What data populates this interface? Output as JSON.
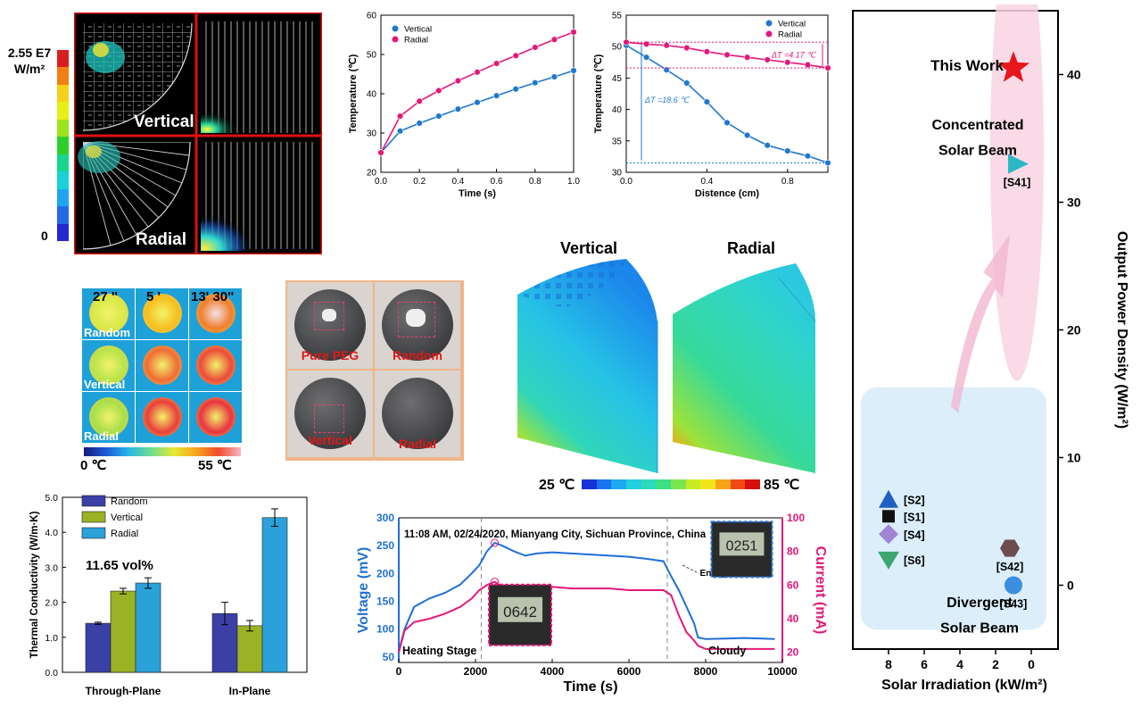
{
  "panel_a": {
    "scale_max": "2.55 E7",
    "scale_unit": "W/m²",
    "scale_min": "0",
    "label_vertical": "Vertical",
    "label_radial": "Radial",
    "scale_colors": [
      "#d81f1f",
      "#f27f12",
      "#f6d11a",
      "#e8ef16",
      "#9be41d",
      "#2fcf29",
      "#17d58d",
      "#18d2d8",
      "#1ea5ef",
      "#246ae7",
      "#2426d1"
    ]
  },
  "panel_c": {
    "times": [
      "27 ''",
      "5 '",
      "13' 30''"
    ],
    "rows": [
      "Random",
      "Vertical",
      "Radial"
    ],
    "scale_min": "0 ℃",
    "scale_max": "55 ℃"
  },
  "panel_d": {
    "labels": [
      "Pure PEG",
      "Random",
      "Vertical",
      "Radial"
    ]
  },
  "panel_e": {
    "title_vertical": "Vertical",
    "title_radial": "Radial",
    "scale_min": "25 ℃",
    "scale_max": "85 ℃",
    "scale_colors": [
      "#1633d8",
      "#1a74ee",
      "#1ea9f0",
      "#25cfe0",
      "#2ed9bb",
      "#3ddf86",
      "#7ae650",
      "#c6ec27",
      "#f3e51b",
      "#f6a516",
      "#ef4b14",
      "#d61010"
    ]
  },
  "panel_h": {
    "timestamp": "11:08 AM, 02/24/2020, Mianyang City, Sichuan Province, China",
    "annotations": {
      "heating": "Heating Stage",
      "cloudy": "Cloudy",
      "release": "Energy Release"
    },
    "meter_left": "0642",
    "meter_right": "0251"
  },
  "panel_i": {
    "label_this_work": "This Work",
    "label_concentrated_1": "Concentrated",
    "label_concentrated_2": "Solar Beam",
    "label_divergent_1": "Divergent",
    "label_divergent_2": "Solar Beam"
  },
  "chart_data": [
    {
      "id": "temp_vs_time",
      "type": "line",
      "title": "",
      "xlabel": "Time (s)",
      "ylabel": "Temperature (℃)",
      "xlim": [
        0,
        1.0
      ],
      "ylim": [
        20,
        60
      ],
      "xticks": [
        0.0,
        0.2,
        0.4,
        0.6,
        0.8,
        1.0
      ],
      "xtick_labels": [
        "0.0",
        "0.2",
        "0.4",
        "0.6",
        "0.8",
        "1.0"
      ],
      "yticks": [
        20,
        30,
        40,
        50,
        60
      ],
      "legend": "top-left",
      "series": [
        {
          "name": "Vertical",
          "color": "#1f78d1",
          "x": [
            0.0,
            0.1,
            0.2,
            0.3,
            0.4,
            0.5,
            0.6,
            0.7,
            0.8,
            0.9,
            1.0
          ],
          "y": [
            25,
            30.5,
            32.5,
            34.3,
            36.1,
            37.8,
            39.5,
            41.2,
            42.8,
            44.3,
            45.9
          ]
        },
        {
          "name": "Radial",
          "color": "#e5177a",
          "x": [
            0.0,
            0.1,
            0.2,
            0.3,
            0.4,
            0.5,
            0.6,
            0.7,
            0.8,
            0.9,
            1.0
          ],
          "y": [
            25,
            34.3,
            38.1,
            40.8,
            43.3,
            45.5,
            47.7,
            49.7,
            51.8,
            53.8,
            55.7
          ]
        }
      ]
    },
    {
      "id": "temp_vs_distance",
      "type": "line",
      "title": "",
      "xlabel": "Distence (cm)",
      "ylabel": "Temperature (℃)",
      "xlim": [
        0,
        1.0
      ],
      "ylim": [
        30,
        55
      ],
      "xticks": [
        0.0,
        0.4,
        0.8
      ],
      "xtick_labels": [
        "0.0",
        "0.4",
        "0.8"
      ],
      "yticks": [
        30,
        35,
        40,
        45,
        50,
        55
      ],
      "legend": "top-right",
      "annotations": [
        "ΔT =4.17 ℃",
        "ΔT =18.6 ℃"
      ],
      "series": [
        {
          "name": "Vertical",
          "color": "#1f78d1",
          "x": [
            0.0,
            0.1,
            0.2,
            0.3,
            0.4,
            0.5,
            0.6,
            0.7,
            0.8,
            0.9,
            1.0
          ],
          "y": [
            50.2,
            48.3,
            46.3,
            44.2,
            41.2,
            37.9,
            35.9,
            34.3,
            33.4,
            32.6,
            31.5
          ]
        },
        {
          "name": "Radial",
          "color": "#e5177a",
          "x": [
            0.0,
            0.1,
            0.2,
            0.3,
            0.4,
            0.5,
            0.6,
            0.7,
            0.8,
            0.9,
            1.0
          ],
          "y": [
            50.7,
            50.4,
            50.2,
            49.8,
            49.2,
            48.7,
            48.3,
            47.9,
            47.5,
            47.1,
            46.6
          ]
        }
      ]
    },
    {
      "id": "thermal_conductivity",
      "type": "bar",
      "title": "11.65 vol%",
      "xlabel": "",
      "ylabel": "Thermal Conductivity (W/m·K)",
      "ylim": [
        0,
        5.0
      ],
      "yticks": [
        0.0,
        1.0,
        2.0,
        3.0,
        4.0,
        5.0
      ],
      "ytick_labels": [
        "0.0",
        "1.0",
        "2.0",
        "3.0",
        "4.0",
        "5.0"
      ],
      "categories": [
        "Through-Plane",
        "In-Plane"
      ],
      "legend": "top-left",
      "series": [
        {
          "name": "Random",
          "color": "#3b40a6",
          "values": [
            1.4,
            1.68
          ],
          "errors": [
            0.03,
            0.32
          ]
        },
        {
          "name": "Vertical",
          "color": "#9bb224",
          "values": [
            2.32,
            1.33
          ],
          "errors": [
            0.08,
            0.15
          ]
        },
        {
          "name": "Radial",
          "color": "#2aa1d8",
          "values": [
            2.55,
            4.42
          ],
          "errors": [
            0.15,
            0.25
          ]
        }
      ]
    },
    {
      "id": "voltage_current",
      "type": "line",
      "title": "",
      "xlabel": "Time (s)",
      "ylabel": "Voltage (mV)",
      "ylabel_right": "Current (mA)",
      "xlim": [
        0,
        10000
      ],
      "ylim": [
        40,
        300
      ],
      "ylim_right": [
        14,
        100
      ],
      "xticks": [
        0,
        2000,
        4000,
        6000,
        8000,
        10000
      ],
      "yticks": [
        50,
        100,
        150,
        200,
        250,
        300
      ],
      "yticks_right": [
        20,
        40,
        60,
        80,
        100
      ],
      "markers": [
        2150,
        7000
      ],
      "series": [
        {
          "name": "Voltage",
          "color": "#1f6fd6",
          "axis": "left",
          "x": [
            0,
            150,
            400,
            800,
            1200,
            1600,
            1900,
            2100,
            2300,
            2500,
            2700,
            3000,
            3300,
            3600,
            4000,
            4500,
            5000,
            5500,
            6000,
            6500,
            6900,
            7100,
            7300,
            7500,
            7700,
            7800,
            8000,
            8500,
            9000,
            9500,
            9800
          ],
          "y": [
            60,
            100,
            140,
            155,
            165,
            180,
            200,
            215,
            240,
            255,
            250,
            240,
            232,
            236,
            238,
            236,
            234,
            232,
            230,
            226,
            222,
            195,
            170,
            140,
            110,
            85,
            82,
            83,
            84,
            83,
            82
          ]
        },
        {
          "name": "Current",
          "color": "#e5177a",
          "axis": "right",
          "x": [
            0,
            150,
            400,
            800,
            1200,
            1600,
            1900,
            2100,
            2300,
            2500,
            2700,
            3000,
            3300,
            3600,
            4000,
            4500,
            5000,
            5500,
            6000,
            6500,
            6900,
            7100,
            7300,
            7500,
            7700,
            7800,
            8000,
            8500,
            9000,
            9500,
            9800
          ],
          "y": [
            20,
            33,
            38,
            40,
            43,
            47,
            52,
            57,
            60,
            62,
            59,
            57,
            58,
            60,
            59,
            58,
            58,
            58,
            57,
            57,
            57,
            54,
            42,
            32,
            27,
            24,
            22,
            22,
            22,
            22,
            22
          ]
        }
      ]
    },
    {
      "id": "power_density",
      "type": "scatter",
      "title": "",
      "xlabel": "Solar Irradiation (kW/m²)",
      "ylabel": "Output Power Density (W/m²)",
      "xlim": [
        10,
        -1.5
      ],
      "ylim": [
        -5,
        45
      ],
      "xticks": [
        8,
        6,
        4,
        2,
        0
      ],
      "yticks": [
        0,
        10,
        20,
        30,
        40
      ],
      "points": [
        {
          "label": "",
          "x": 1.0,
          "y": 40.5,
          "shape": "star",
          "color": "#e8151b"
        },
        {
          "label": "[S41]",
          "x": 0.8,
          "y": 33,
          "shape": "triangle-right",
          "color": "#2cb8c3"
        },
        {
          "label": "[S2]",
          "x": 8.0,
          "y": 6.7,
          "shape": "triangle-up",
          "color": "#1e5fc4"
        },
        {
          "label": "[S1]",
          "x": 8.0,
          "y": 5.4,
          "shape": "square",
          "color": "#111111"
        },
        {
          "label": "[S4]",
          "x": 8.0,
          "y": 4.0,
          "shape": "diamond",
          "color": "#a184d6"
        },
        {
          "label": "[S6]",
          "x": 8.0,
          "y": 2.0,
          "shape": "triangle-down",
          "color": "#3fa570"
        },
        {
          "label": "[S42]",
          "x": 1.2,
          "y": 2.9,
          "shape": "hexagon",
          "color": "#6d4c4f"
        },
        {
          "label": "[S43]",
          "x": 1.0,
          "y": 0.0,
          "shape": "circle",
          "color": "#3b8ee0"
        }
      ]
    }
  ]
}
